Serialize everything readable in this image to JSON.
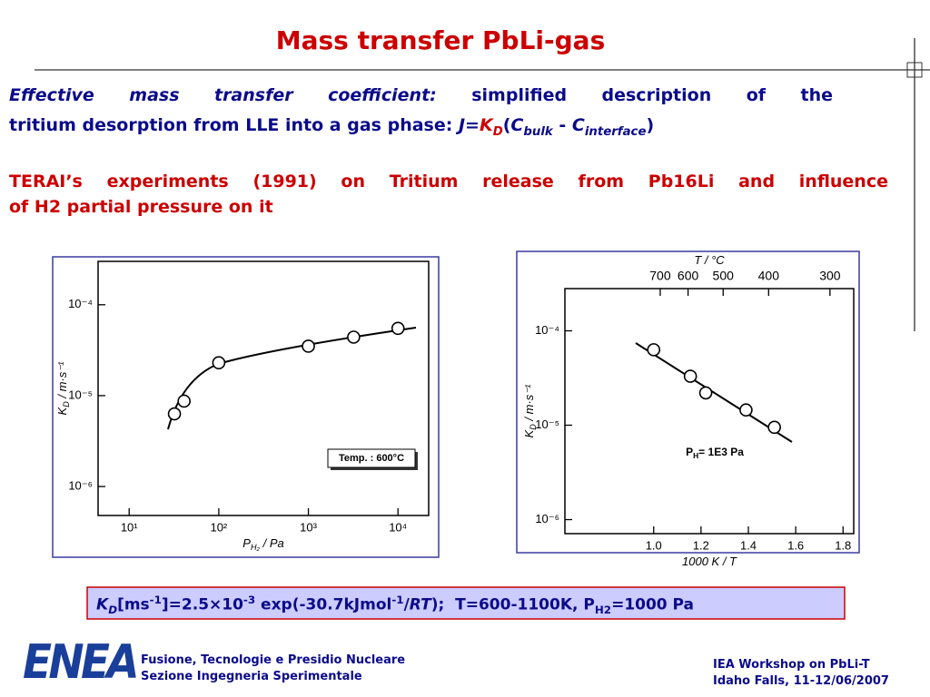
{
  "title": "Mass transfer PbLi-gas",
  "intro": {
    "line1": [
      "Effective mass transfer coefficient:",
      "simplified description of the"
    ],
    "line2": [
      "tritium desorption from LLE into a gas phase: ",
      "J",
      "=",
      "K",
      "D",
      "(",
      "C",
      "bulk",
      " - ",
      "C",
      "interface",
      ")"
    ]
  },
  "experiment": [
    "TERAI’s experiments (1991) on Tritium release from Pb16Li and influence",
    "of H2 partial pressure on it"
  ],
  "figures": [
    {
      "type": "scatter",
      "x_log": true,
      "y_log": true,
      "x_label": {
        "main": "P",
        "sub": "H₂",
        "rest": " / Pa"
      },
      "y_label": {
        "main": "K",
        "sub": "D",
        "rest": " / m·s⁻¹"
      },
      "annotation": {
        "main": "Temp. : 600°C"
      },
      "xlim": [
        4.5,
        22000
      ],
      "ylim": [
        4.8e-07,
        0.0003
      ],
      "xticks": [
        {
          "value": 10,
          "label": "10¹"
        },
        {
          "value": 100,
          "label": "10²"
        },
        {
          "value": 1000,
          "label": "10³"
        },
        {
          "value": 10000,
          "label": "10⁴"
        }
      ],
      "yticks": [
        {
          "value": 0.0001,
          "label": "10⁻⁴"
        },
        {
          "value": 1e-05,
          "label": "10⁻⁵"
        },
        {
          "value": 1e-06,
          "label": "10⁻⁶"
        }
      ],
      "x": [
        32,
        41,
        100,
        1000,
        3200,
        10000
      ],
      "values": [
        6.3e-06,
        8.7e-06,
        2.3e-05,
        3.5e-05,
        4.4e-05,
        5.5e-05
      ]
    },
    {
      "type": "scatter",
      "x_log": false,
      "y_log": true,
      "x_label": {
        "main": "1000 K / T"
      },
      "y_label": {
        "main": "K",
        "sub": "D",
        "rest": " / m·s⁻¹"
      },
      "x2_label": {
        "main": "T / °C"
      },
      "annotation": {
        "main": "P",
        "sub": "H",
        "rest": "= 1E3 Pa"
      },
      "xlim": [
        0.625,
        1.845
      ],
      "ylim": [
        7.1e-07,
        0.00028
      ],
      "xticks": [
        {
          "value": 1,
          "label": "1.0"
        },
        1.2,
        1.4,
        1.6,
        1.8
      ],
      "x2ticks": [
        700,
        600,
        500,
        400,
        300
      ],
      "yticks": [
        {
          "value": 0.0001,
          "label": "10⁻⁴"
        },
        {
          "value": 1e-05,
          "label": "10⁻⁵"
        },
        {
          "value": 1e-06,
          "label": "10⁻⁶"
        }
      ],
      "x": [
        1.0,
        1.155,
        1.22,
        1.39,
        1.51
      ],
      "values": [
        6.3e-05,
        3.3e-05,
        2.2e-05,
        1.45e-05,
        9.5e-06
      ]
    }
  ],
  "correlation": [
    "K",
    "D",
    "[ms",
    "-1",
    "]=2.5×10",
    "-3",
    " exp(-30.7kJmol",
    "-1",
    "/",
    "RT",
    ");  T=600-1100K, P",
    "H2",
    "=1000 Pa"
  ],
  "footer": {
    "logo": "ENEA",
    "left": [
      "Fusione, Tecnologie e Presidio Nucleare",
      "Sezione Ingegneria Sperimentale"
    ],
    "right": [
      "IEA Workshop on PbLi-T",
      "Idaho Falls, 11-12/06/2007"
    ]
  }
}
